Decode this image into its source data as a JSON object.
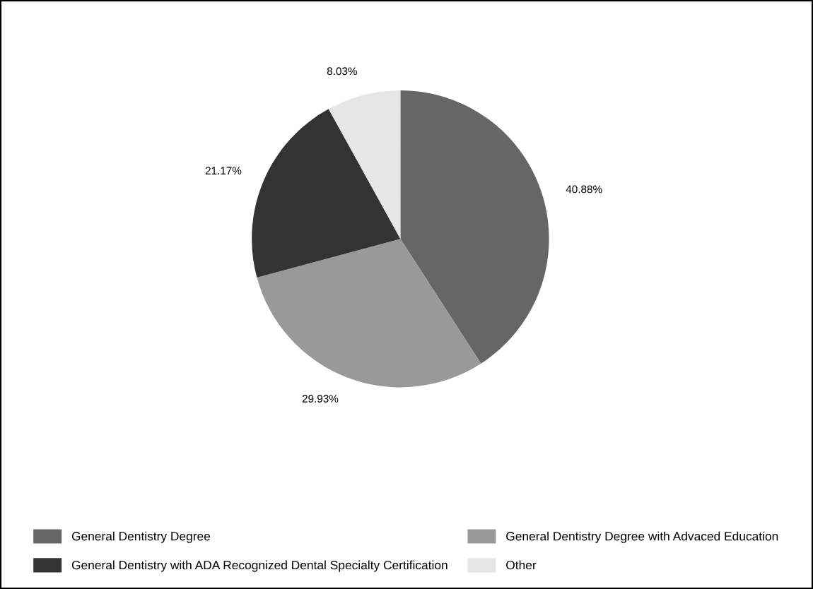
{
  "chart_data": {
    "type": "pie",
    "categories": [
      "General Dentistry Degree",
      "General Dentistry Degree with Advaced Education",
      "General Dentistry with ADA Recognized Dental Specialty Certification",
      "Other"
    ],
    "values": [
      40.88,
      29.93,
      21.17,
      8.03
    ],
    "colors": [
      "#666666",
      "#999999",
      "#333333",
      "#e6e6e6"
    ],
    "value_labels": [
      "40.88%",
      "29.93%",
      "21.17%",
      "8.03%"
    ],
    "legend": "bottom"
  }
}
